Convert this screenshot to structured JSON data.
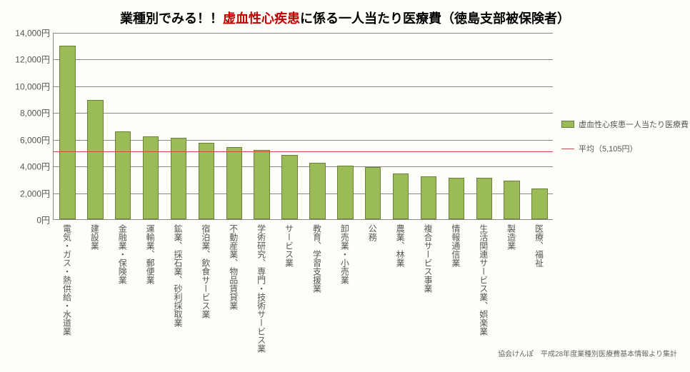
{
  "title": {
    "pre": "業種別でみる！！",
    "highlight": "虚血性心疾患",
    "post": "に係る一人当たり医療費（徳島支部被保険者）"
  },
  "chart": {
    "type": "bar",
    "ymax": 14000,
    "ymin": 0,
    "ytick_step": 2000,
    "y_suffix": "円",
    "bar_color": "#9bbb59",
    "bar_border": "#6a7f39",
    "avg_color": "#c0504d",
    "grid_color": "#888888",
    "background": "#fefef9",
    "avg_value": 5105,
    "categories": [
      "電気・ガス・熱供給・水道業",
      "建設業",
      "金融業・保険業",
      "運輸業、郵便業",
      "鉱業、採石業、砂利採取業",
      "宿泊業、飲食サービス業",
      "不動産業、物品賃貸業",
      "学術研究、専門・技術サービス業",
      "サービス業",
      "教育、学習支援業",
      "卸売業・小売業",
      "公務",
      "農業、林業",
      "複合サービス事業",
      "情報通信業",
      "生活関連サービス業、娯楽業",
      "製造業",
      "医療、福祉"
    ],
    "values": [
      13000,
      8900,
      6600,
      6200,
      6100,
      5700,
      5400,
      5200,
      4800,
      4200,
      4000,
      3900,
      3400,
      3200,
      3100,
      3100,
      2900,
      2300
    ]
  },
  "legend": {
    "bar_label": "虚血性心疾患一人当たり医療費",
    "line_label": "平均（5,105円）"
  },
  "footer": "協会けんぽ　平成28年度業種別医療費基本情報より集計"
}
